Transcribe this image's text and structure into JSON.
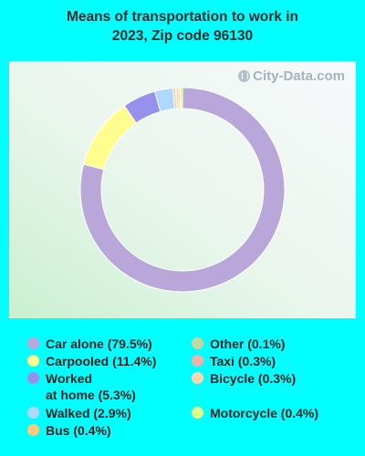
{
  "title_line1": "Means of transportation to work in",
  "title_line2": "2023, Zip code 96130",
  "watermark": "City-Data.com",
  "chart_data": {
    "type": "pie",
    "donut": true,
    "title": "Means of transportation to work in 2023, Zip code 96130",
    "legend_position": "bottom",
    "slices": [
      {
        "label": "Car alone (79.5%)",
        "value": 79.5,
        "color": "#B9A7DA"
      },
      {
        "label": "Carpooled (11.4%)",
        "value": 11.4,
        "color": "#FEFD8E"
      },
      {
        "label": "Worked at home (5.3%)",
        "value": 5.3,
        "color": "#9591ED"
      },
      {
        "label": "Walked (2.9%)",
        "value": 2.9,
        "color": "#AFD8FE"
      },
      {
        "label": "Bus (0.4%)",
        "value": 0.4,
        "color": "#FFC979"
      },
      {
        "label": "Other (0.1%)",
        "value": 0.1,
        "color": "#C4D7A3"
      },
      {
        "label": "Taxi (0.3%)",
        "value": 0.3,
        "color": "#F2B2AB"
      },
      {
        "label": "Bicycle (0.3%)",
        "value": 0.3,
        "color": "#FBD6B1"
      },
      {
        "label": "Motorcycle (0.4%)",
        "value": 0.4,
        "color": "#DDFB86"
      }
    ]
  },
  "legend": {
    "left": [
      {
        "line1": "Car alone (79.5%)",
        "line2": "",
        "color": "#B9A7DA"
      },
      {
        "line1": "Carpooled (11.4%)",
        "line2": "",
        "color": "#FEFD8E"
      },
      {
        "line1": "Worked",
        "line2": "at home (5.3%)",
        "color": "#9591ED"
      },
      {
        "line1": "Walked (2.9%)",
        "line2": "",
        "color": "#AFD8FE"
      },
      {
        "line1": "Bus (0.4%)",
        "line2": "",
        "color": "#FFC979"
      }
    ],
    "right": [
      {
        "line1": "Other (0.1%)",
        "line2": "",
        "color": "#C4D7A3"
      },
      {
        "line1": "Taxi (0.3%)",
        "line2": "",
        "color": "#F2B2AB"
      },
      {
        "line1": "Bicycle (0.3%)",
        "line2": "",
        "color": "#FBD6B1"
      },
      {
        "line1": "Motorcycle (0.4%)",
        "line2": "",
        "color": "#DDFB86"
      }
    ]
  }
}
